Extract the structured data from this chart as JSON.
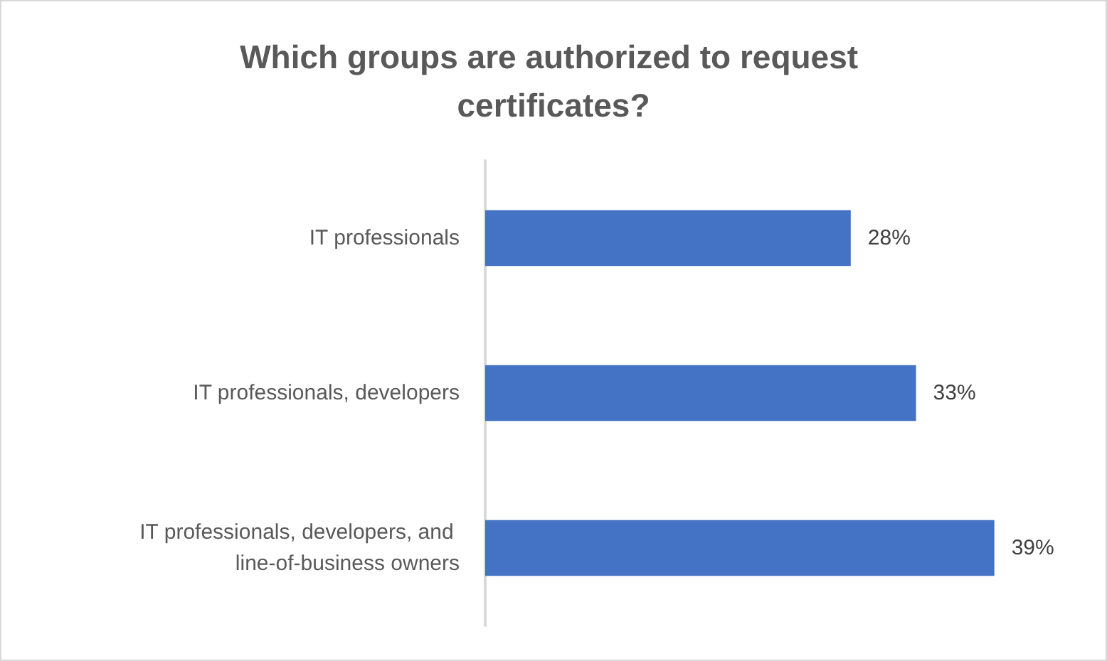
{
  "chart_data": {
    "type": "bar",
    "orientation": "horizontal",
    "title": "Which groups are authorized to request certificates?",
    "categories": [
      "IT professionals",
      "IT professionals, developers",
      "IT professionals, developers, and line-of-business owners"
    ],
    "values": [
      28,
      33,
      39
    ],
    "color": "#4472c4",
    "value_labels": [
      "28%",
      "33%",
      "39%"
    ],
    "tick_labels": "y"
  }
}
